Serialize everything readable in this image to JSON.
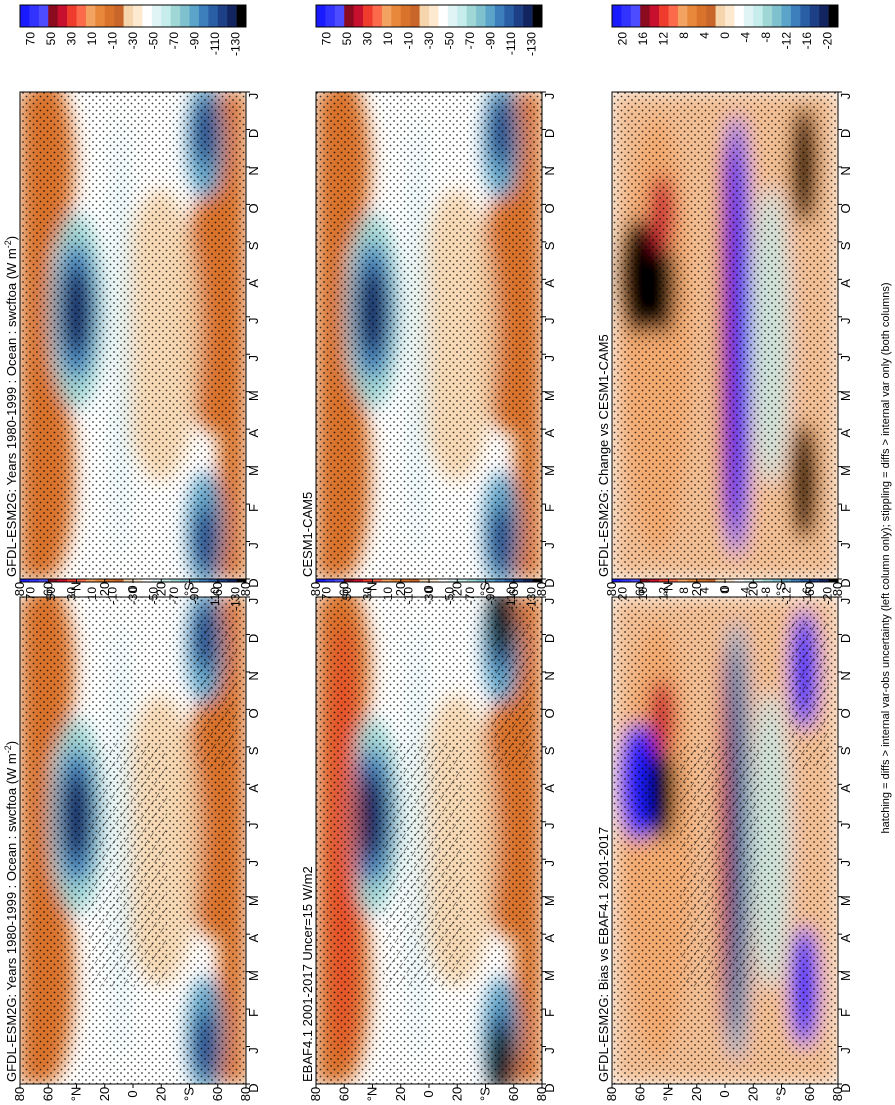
{
  "figure": {
    "caption": "hatching = diffs > internal var-obs uncertainty (left column only); stippling = diffs > internal var only (both columns)"
  },
  "axes": {
    "month_ticks": [
      "D",
      "J",
      "F",
      "M",
      "A",
      "M",
      "J",
      "J",
      "A",
      "S",
      "O",
      "N",
      "D",
      "J"
    ],
    "lat_ticks": [
      "80",
      "60",
      "°N",
      "20",
      "0",
      "20",
      "°S",
      "60",
      "80"
    ]
  },
  "colors": {
    "mean_scale": [
      "#1a1aff",
      "#3333ff",
      "#4d4dff",
      "#8b0a1e",
      "#c8102e",
      "#ef3b2c",
      "#fb6a4a",
      "#f4a261",
      "#e8883a",
      "#d9722b",
      "#c8652a",
      "#f6d5ad",
      "#fde9cf",
      "#ffffff",
      "#e0f3f5",
      "#c6ecec",
      "#9fd7d6",
      "#7fc1cf",
      "#5aa3c9",
      "#3c7fbc",
      "#2a5fa6",
      "#1d3f86",
      "#122560",
      "#000000"
    ],
    "diff_scale": [
      "#1a1aff",
      "#3333ff",
      "#4d4dff",
      "#8b0a1e",
      "#c8102e",
      "#ef3b2c",
      "#fb6a4a",
      "#f4a261",
      "#e8883a",
      "#d9722b",
      "#c8652a",
      "#f6d5ad",
      "#fde9cf",
      "#ffffff",
      "#e0f3f5",
      "#c6ecec",
      "#9fd7d6",
      "#7fc1cf",
      "#5aa3c9",
      "#3c7fbc",
      "#2a5fa6",
      "#1d3f86",
      "#122560",
      "#000000"
    ]
  },
  "colorbars": {
    "mean_labels": [
      "70",
      "50",
      "30",
      "10",
      "-10",
      "-30",
      "-50",
      "-70",
      "-90",
      "-110",
      "-130"
    ],
    "diff_labels": [
      "20",
      "16",
      "12",
      "8",
      "4",
      "0",
      "-4",
      "-8",
      "-12",
      "-16",
      "-20"
    ]
  },
  "chart_data": [
    {
      "type": "heatmap",
      "title": "GFDL-ESM2G: Years 1980-1999 : Ocean : swcftoa (W m",
      "title_sup": "-2",
      "title_end": ")",
      "kind": "mean",
      "hatching": true,
      "stippling": true
    },
    {
      "type": "heatmap",
      "title": "GFDL-ESM2G: Years 1980-1999 : Ocean : swcftoa (W m",
      "title_sup": "-2",
      "title_end": ")",
      "kind": "mean",
      "hatching": false,
      "stippling": true
    },
    {
      "type": "heatmap",
      "title": "EBAF4.1 2001-2017 Uncer=15 W/m2",
      "kind": "mean",
      "hatching": true,
      "stippling": true
    },
    {
      "type": "heatmap",
      "title": "CESM1-CAM5",
      "kind": "mean",
      "hatching": false,
      "stippling": true
    },
    {
      "type": "heatmap",
      "title": "GFDL-ESM2G: Bias vs EBAF4.1 2001-2017",
      "kind": "diff",
      "hatching": true,
      "stippling": true
    },
    {
      "type": "heatmap",
      "title": "GFDL-ESM2G: Change vs CESM1-CAM5",
      "kind": "diff",
      "hatching": false,
      "stippling": true
    }
  ]
}
